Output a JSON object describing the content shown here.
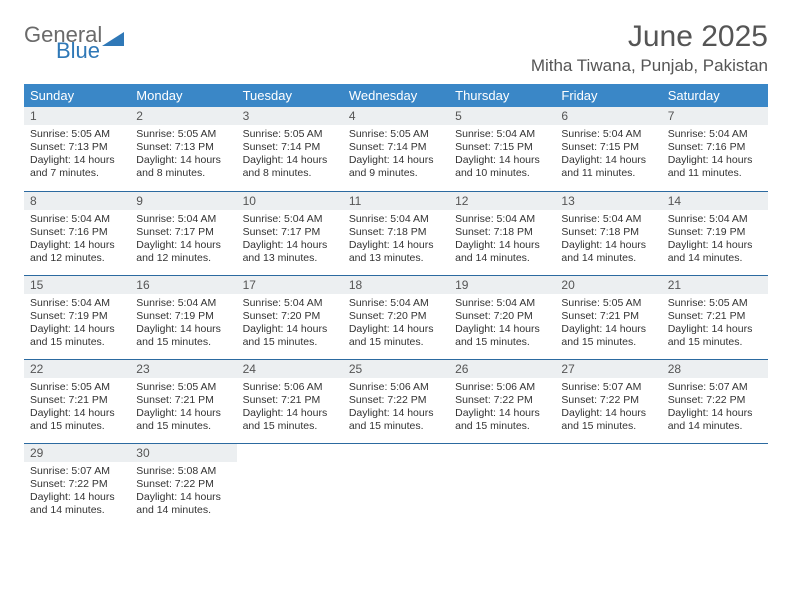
{
  "brand": {
    "word1": "General",
    "word2": "Blue",
    "color1": "#6a6a6a",
    "color2": "#2f78b7"
  },
  "title": "June 2025",
  "location": "Mitha Tiwana, Punjab, Pakistan",
  "header_bg": "#3a87c7",
  "header_fg": "#ffffff",
  "daynum_bg": "#eceff1",
  "rule_color": "#2c6aa0",
  "columns": [
    "Sunday",
    "Monday",
    "Tuesday",
    "Wednesday",
    "Thursday",
    "Friday",
    "Saturday"
  ],
  "weeks": [
    [
      {
        "n": "1",
        "sr": "5:05 AM",
        "ss": "7:13 PM",
        "dl": "14 hours and 7 minutes."
      },
      {
        "n": "2",
        "sr": "5:05 AM",
        "ss": "7:13 PM",
        "dl": "14 hours and 8 minutes."
      },
      {
        "n": "3",
        "sr": "5:05 AM",
        "ss": "7:14 PM",
        "dl": "14 hours and 8 minutes."
      },
      {
        "n": "4",
        "sr": "5:05 AM",
        "ss": "7:14 PM",
        "dl": "14 hours and 9 minutes."
      },
      {
        "n": "5",
        "sr": "5:04 AM",
        "ss": "7:15 PM",
        "dl": "14 hours and 10 minutes."
      },
      {
        "n": "6",
        "sr": "5:04 AM",
        "ss": "7:15 PM",
        "dl": "14 hours and 11 minutes."
      },
      {
        "n": "7",
        "sr": "5:04 AM",
        "ss": "7:16 PM",
        "dl": "14 hours and 11 minutes."
      }
    ],
    [
      {
        "n": "8",
        "sr": "5:04 AM",
        "ss": "7:16 PM",
        "dl": "14 hours and 12 minutes."
      },
      {
        "n": "9",
        "sr": "5:04 AM",
        "ss": "7:17 PM",
        "dl": "14 hours and 12 minutes."
      },
      {
        "n": "10",
        "sr": "5:04 AM",
        "ss": "7:17 PM",
        "dl": "14 hours and 13 minutes."
      },
      {
        "n": "11",
        "sr": "5:04 AM",
        "ss": "7:18 PM",
        "dl": "14 hours and 13 minutes."
      },
      {
        "n": "12",
        "sr": "5:04 AM",
        "ss": "7:18 PM",
        "dl": "14 hours and 14 minutes."
      },
      {
        "n": "13",
        "sr": "5:04 AM",
        "ss": "7:18 PM",
        "dl": "14 hours and 14 minutes."
      },
      {
        "n": "14",
        "sr": "5:04 AM",
        "ss": "7:19 PM",
        "dl": "14 hours and 14 minutes."
      }
    ],
    [
      {
        "n": "15",
        "sr": "5:04 AM",
        "ss": "7:19 PM",
        "dl": "14 hours and 15 minutes."
      },
      {
        "n": "16",
        "sr": "5:04 AM",
        "ss": "7:19 PM",
        "dl": "14 hours and 15 minutes."
      },
      {
        "n": "17",
        "sr": "5:04 AM",
        "ss": "7:20 PM",
        "dl": "14 hours and 15 minutes."
      },
      {
        "n": "18",
        "sr": "5:04 AM",
        "ss": "7:20 PM",
        "dl": "14 hours and 15 minutes."
      },
      {
        "n": "19",
        "sr": "5:04 AM",
        "ss": "7:20 PM",
        "dl": "14 hours and 15 minutes."
      },
      {
        "n": "20",
        "sr": "5:05 AM",
        "ss": "7:21 PM",
        "dl": "14 hours and 15 minutes."
      },
      {
        "n": "21",
        "sr": "5:05 AM",
        "ss": "7:21 PM",
        "dl": "14 hours and 15 minutes."
      }
    ],
    [
      {
        "n": "22",
        "sr": "5:05 AM",
        "ss": "7:21 PM",
        "dl": "14 hours and 15 minutes."
      },
      {
        "n": "23",
        "sr": "5:05 AM",
        "ss": "7:21 PM",
        "dl": "14 hours and 15 minutes."
      },
      {
        "n": "24",
        "sr": "5:06 AM",
        "ss": "7:21 PM",
        "dl": "14 hours and 15 minutes."
      },
      {
        "n": "25",
        "sr": "5:06 AM",
        "ss": "7:22 PM",
        "dl": "14 hours and 15 minutes."
      },
      {
        "n": "26",
        "sr": "5:06 AM",
        "ss": "7:22 PM",
        "dl": "14 hours and 15 minutes."
      },
      {
        "n": "27",
        "sr": "5:07 AM",
        "ss": "7:22 PM",
        "dl": "14 hours and 15 minutes."
      },
      {
        "n": "28",
        "sr": "5:07 AM",
        "ss": "7:22 PM",
        "dl": "14 hours and 14 minutes."
      }
    ],
    [
      {
        "n": "29",
        "sr": "5:07 AM",
        "ss": "7:22 PM",
        "dl": "14 hours and 14 minutes."
      },
      {
        "n": "30",
        "sr": "5:08 AM",
        "ss": "7:22 PM",
        "dl": "14 hours and 14 minutes."
      },
      null,
      null,
      null,
      null,
      null
    ]
  ]
}
